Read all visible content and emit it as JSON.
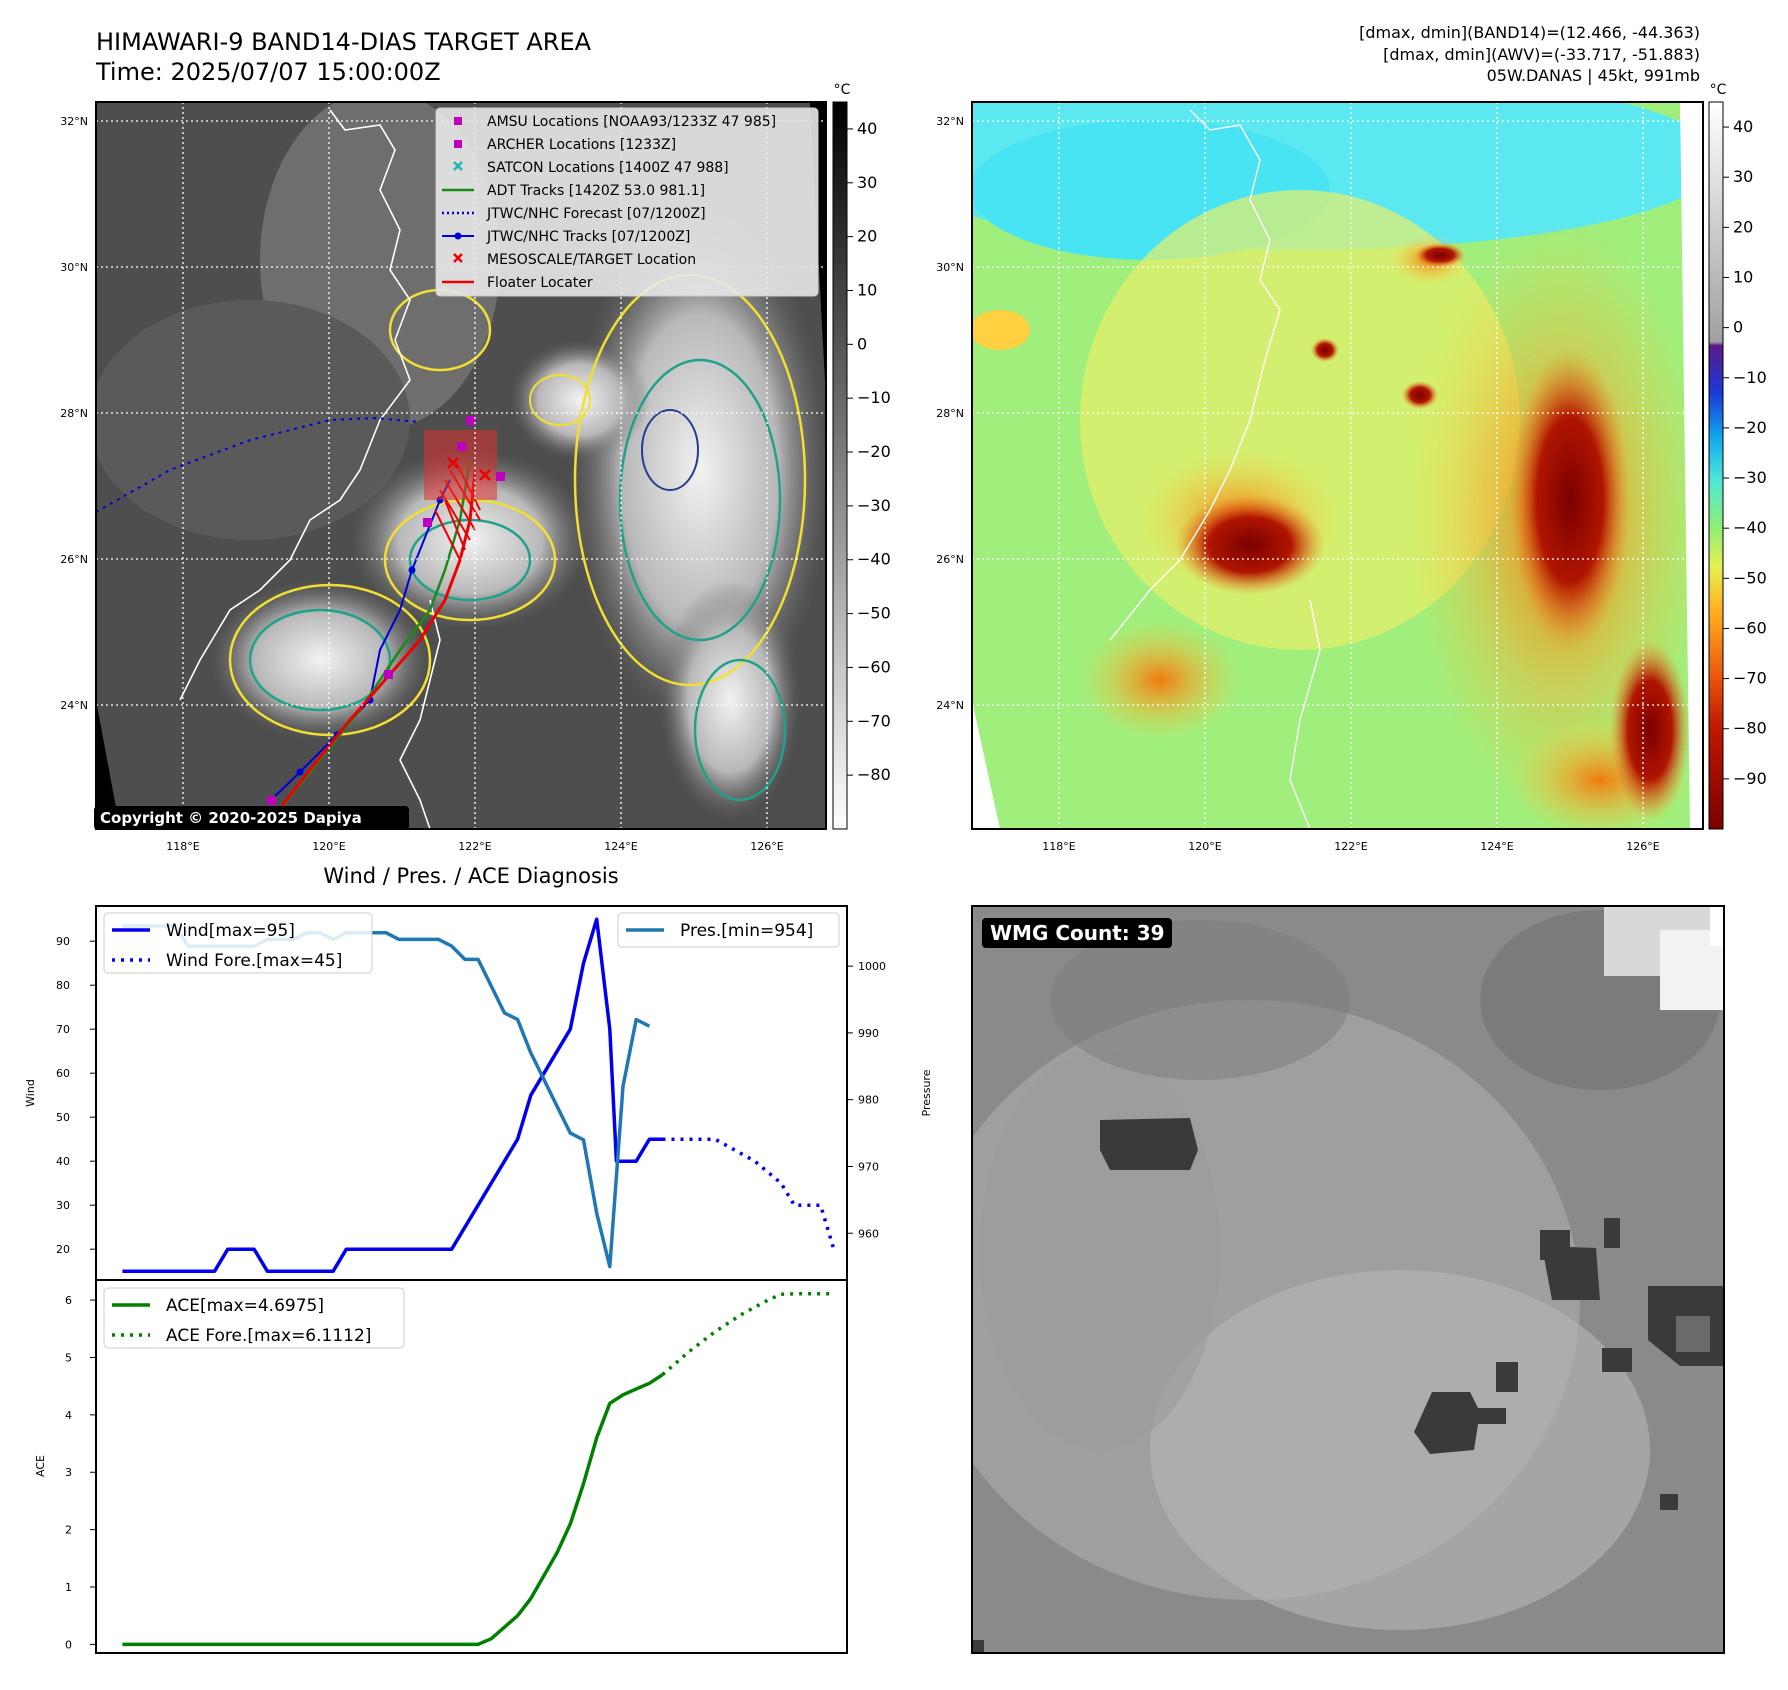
{
  "header": {
    "title_line1": "HIMAWARI-9 BAND14-DIAS TARGET AREA",
    "title_line2": "Time: 2025/07/07 15:00:00Z",
    "info_line1": "[dmax, dmin](BAND14)=(12.466, -44.363)",
    "info_line2": "[dmax, dmin](AWV)=(-33.717, -51.883)",
    "info_line3": "05W.DANAS | 45kt, 991mb"
  },
  "map_axes": {
    "lat_labels": [
      "32°N",
      "30°N",
      "28°N",
      "26°N",
      "24°N"
    ],
    "lon_labels": [
      "118°E",
      "120°E",
      "122°E",
      "124°E",
      "126°E"
    ],
    "copyright": "Copyright © 2020-2025 Dapiya"
  },
  "ir_colorbar": {
    "unit": "°C",
    "ticks": [
      "40",
      "30",
      "20",
      "10",
      "0",
      "−10",
      "−20",
      "−30",
      "−40",
      "−50",
      "−60",
      "−70",
      "−80"
    ]
  },
  "awv_colorbar": {
    "unit": "°C",
    "ticks": [
      "40",
      "30",
      "20",
      "10",
      "0",
      "−10",
      "−20",
      "−30",
      "−40",
      "−50",
      "−60",
      "−70",
      "−80",
      "−90"
    ]
  },
  "legend_map": [
    {
      "label": "AMSU Locations [NOAA93/1233Z 47 985]",
      "marker": "square",
      "color": "#c000c0"
    },
    {
      "label": "ARCHER Locations [1233Z]",
      "marker": "square",
      "color": "#c000c0"
    },
    {
      "label": "SATCON Locations [1400Z 47 988]",
      "marker": "x",
      "color": "#1fb5b5"
    },
    {
      "label": "ADT Tracks [1420Z 53.0 981.1]",
      "marker": "line",
      "color": "#1a8a1a"
    },
    {
      "label": "JTWC/NHC Forecast [07/1200Z]",
      "marker": "dotted",
      "color": "#0000dd"
    },
    {
      "label": "JTWC/NHC Tracks [07/1200Z]",
      "marker": "line-dot",
      "color": "#0000dd"
    },
    {
      "label": "MESOSCALE/TARGET Location",
      "marker": "x",
      "color": "#ee0000"
    },
    {
      "label": "Floater Locater",
      "marker": "line",
      "color": "#ee0000"
    }
  ],
  "wmg": {
    "label": "WMG Count: 39"
  },
  "chart_data": [
    {
      "type": "line",
      "title": "Wind / Pres. / ACE Diagnosis",
      "ylabel": "Wind",
      "ylabel_right": "Pressure",
      "ylim": [
        13,
        98
      ],
      "ylim_right": [
        953,
        1009
      ],
      "y_ticks": [
        20,
        30,
        40,
        50,
        60,
        70,
        80,
        90
      ],
      "y_ticks_right": [
        960,
        970,
        980,
        990,
        1000
      ],
      "x_range": [
        -2,
        55
      ],
      "legend_left": [
        "Wind[max=95]",
        "Wind Fore.[max=45]"
      ],
      "legend_right": [
        "Pres.[min=954]"
      ],
      "series": [
        {
          "name": "Wind[max=95]",
          "color": "#0000ee",
          "style": "solid",
          "x": [
            0,
            7,
            8,
            10,
            11,
            16,
            17,
            25,
            26,
            30,
            31,
            32,
            33,
            34,
            35,
            36,
            37,
            37.5,
            38,
            39,
            40,
            41
          ],
          "y": [
            15,
            15,
            20,
            20,
            15,
            15,
            20,
            20,
            25,
            45,
            55,
            60,
            65,
            70,
            85,
            95,
            70,
            40,
            40,
            40,
            45,
            45
          ]
        },
        {
          "name": "Wind Fore.[max=45]",
          "color": "#0000ee",
          "style": "dotted",
          "x": [
            41,
            45,
            48,
            50,
            51,
            53,
            54
          ],
          "y": [
            45,
            45,
            40,
            35,
            30,
            30,
            20
          ]
        },
        {
          "name": "Pres.[min=954]",
          "color": "#1f77b4",
          "style": "solid",
          "x": [
            0,
            4,
            5,
            10,
            11,
            13,
            14,
            15,
            16,
            17,
            18,
            20,
            21,
            23,
            24,
            25,
            26,
            27,
            28,
            29,
            30,
            31,
            32,
            33,
            34,
            35,
            36,
            37,
            38,
            39,
            40
          ],
          "y": [
            1006,
            1006,
            1003,
            1003,
            1004,
            1004,
            1005,
            1005,
            1004,
            1005,
            1005,
            1005,
            1004,
            1004,
            1004,
            1003,
            1001,
            1001,
            997,
            993,
            992,
            987,
            983,
            979,
            975,
            974,
            963,
            955,
            982,
            992,
            991
          ]
        }
      ]
    },
    {
      "type": "line",
      "ylabel": "ACE",
      "ylim": [
        -0.15,
        6.35
      ],
      "y_ticks": [
        0,
        1,
        2,
        3,
        4,
        5,
        6
      ],
      "x_range": [
        -2,
        55
      ],
      "legend_left": [
        "ACE[max=4.6975]",
        "ACE Fore.[max=6.1112]"
      ],
      "series": [
        {
          "name": "ACE[max=4.6975]",
          "color": "#008000",
          "style": "solid",
          "x": [
            0,
            27,
            28,
            29,
            30,
            31,
            32,
            33,
            34,
            35,
            36,
            37,
            38,
            39,
            40,
            41
          ],
          "y": [
            0,
            0,
            0.1,
            0.3,
            0.5,
            0.8,
            1.2,
            1.6,
            2.1,
            2.8,
            3.6,
            4.2,
            4.35,
            4.45,
            4.55,
            4.7
          ]
        },
        {
          "name": "ACE Fore.[max=6.1112]",
          "color": "#008000",
          "style": "dotted",
          "x": [
            41,
            43,
            45,
            47,
            49,
            50,
            51,
            52,
            54
          ],
          "y": [
            4.7,
            5.1,
            5.45,
            5.75,
            6.0,
            6.1,
            6.11,
            6.11,
            6.11
          ]
        }
      ]
    }
  ]
}
